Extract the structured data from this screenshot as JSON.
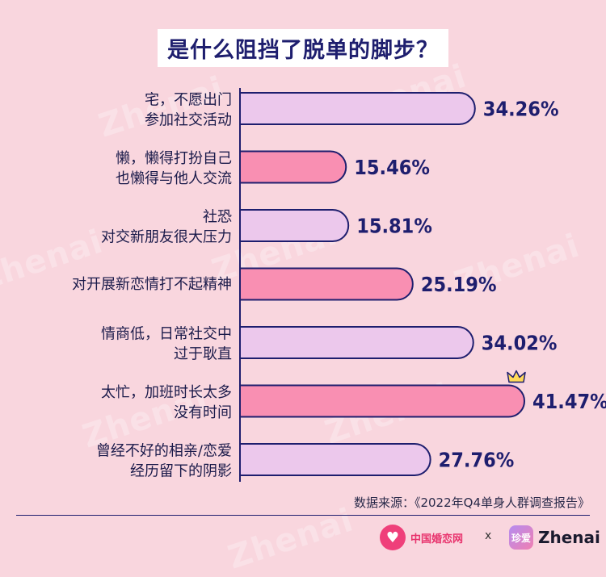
{
  "chart_data": {
    "type": "bar",
    "orientation": "horizontal",
    "title": "是什么阻挡了脱单的脚步？",
    "categories": [
      [
        "宅，不愿出门",
        "参加社交活动"
      ],
      [
        "懒，懒得打扮自己",
        "也懒得与他人交流"
      ],
      [
        "社恐",
        "对交新朋友很大压力"
      ],
      [
        "对开展新恋情打不起精神"
      ],
      [
        "情商低，日常社交中",
        "过于耿直"
      ],
      [
        "太忙，加班时长太多",
        "没有时间"
      ],
      [
        "曾经不好的相亲/恋爱",
        "经历留下的阴影"
      ]
    ],
    "values": [
      34.26,
      15.46,
      15.81,
      25.19,
      34.02,
      41.47,
      27.76
    ],
    "value_labels": [
      "34.26%",
      "15.46%",
      "15.81%",
      "25.19%",
      "34.02%",
      "41.47%",
      "27.76%"
    ],
    "bar_styles": [
      "light",
      "pink",
      "light",
      "pink",
      "light",
      "pink",
      "light"
    ],
    "xlim": [
      0,
      41.47
    ],
    "grid": false,
    "highlight": 5
  },
  "colors": {
    "background": "#f9d6de",
    "bar_light": "#ecc8ec",
    "bar_pink": "#f98fb2",
    "outline": "#1e1e6e",
    "crown": "#ffd957"
  },
  "source": "数据来源：《2022年Q4单身人群调查报告》",
  "logos": {
    "left_icon": "heart-logo-icon",
    "left_text": "中国婚恋网",
    "separator": "x",
    "right_badge": "珍爱",
    "right_text": "Zhenai"
  },
  "watermark": "Zhenai"
}
